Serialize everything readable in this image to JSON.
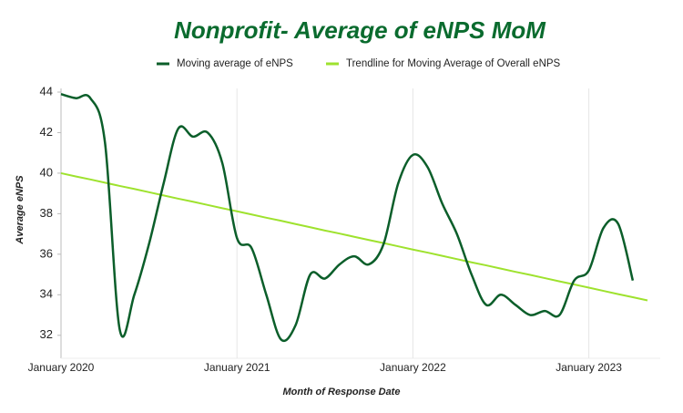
{
  "chart_data": {
    "type": "line",
    "title": "Nonprofit- Average of eNPS MoM",
    "xlabel": "Month of Response Date",
    "ylabel": "Average eNPS",
    "categories": [
      "January 2020",
      null,
      null,
      null,
      null,
      null,
      null,
      null,
      null,
      null,
      null,
      null,
      "January 2021",
      null,
      null,
      null,
      null,
      null,
      null,
      null,
      null,
      null,
      null,
      null,
      "January 2022",
      null,
      null,
      null,
      null,
      null,
      null,
      null,
      null,
      null,
      null,
      null,
      "January 2023",
      null,
      null,
      null,
      null
    ],
    "series": [
      {
        "name": "Moving average of eNPS",
        "color": "#0b5e2a",
        "smooth": true,
        "values": [
          43.9,
          43.7,
          43.7,
          41.5,
          32.3,
          34.0,
          36.5,
          39.5,
          42.2,
          41.8,
          42.0,
          40.5,
          36.8,
          36.3,
          34.0,
          31.8,
          32.5,
          35.0,
          34.8,
          35.5,
          35.9,
          35.5,
          36.5,
          39.5,
          40.9,
          40.3,
          38.5,
          37.0,
          35.0,
          33.5,
          34.0,
          33.5,
          33.0,
          33.2,
          33.0,
          34.7,
          35.2,
          37.3,
          37.5,
          34.7,
          null
        ]
      },
      {
        "name": "Trendline for Moving Average of Overall eNPS",
        "color": "#9ee22e",
        "smooth": false,
        "values": [
          40.0,
          39.84,
          39.69,
          39.53,
          39.37,
          39.22,
          39.06,
          38.9,
          38.74,
          38.59,
          38.43,
          38.27,
          38.12,
          37.96,
          37.8,
          37.65,
          37.49,
          37.33,
          37.17,
          37.02,
          36.86,
          36.7,
          36.55,
          36.39,
          36.23,
          36.08,
          35.92,
          35.76,
          35.6,
          35.45,
          35.29,
          35.13,
          34.98,
          34.82,
          34.66,
          34.51,
          34.35,
          34.19,
          34.03,
          33.88,
          33.72
        ]
      }
    ],
    "ylim": [
      31,
      44
    ],
    "yticks": [
      32,
      34,
      36,
      38,
      40,
      42,
      44
    ],
    "legend": "top"
  }
}
